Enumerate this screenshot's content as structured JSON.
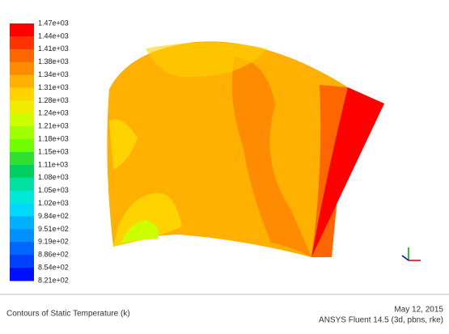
{
  "colorbar": {
    "labels": [
      "1.47e+03",
      "1.44e+03",
      "1.41e+03",
      "1.38e+03",
      "1.34e+03",
      "1.31e+03",
      "1.28e+03",
      "1.24e+03",
      "1.21e+03",
      "1.18e+03",
      "1.15e+03",
      "1.11e+03",
      "1.08e+03",
      "1.05e+03",
      "1.02e+03",
      "9.84e+02",
      "9.51e+02",
      "9.19e+02",
      "8.86e+02",
      "8.54e+02",
      "8.21e+02"
    ],
    "colors": [
      "#ff0000",
      "#ff3300",
      "#ff6600",
      "#ff8c00",
      "#ffb000",
      "#ffd200",
      "#f0ec00",
      "#ccff00",
      "#a0ff00",
      "#70ff00",
      "#30e030",
      "#00d060",
      "#00e0a0",
      "#00e8d8",
      "#00d8ff",
      "#00b0ff",
      "#0090ff",
      "#0066ff",
      "#0040ff",
      "#0010ff"
    ]
  },
  "footer": {
    "title": "Contours of Static Temperature (k)",
    "date": "May 12, 2015",
    "software": "ANSYS Fluent 14.5 (3d, pbns, rke)"
  }
}
